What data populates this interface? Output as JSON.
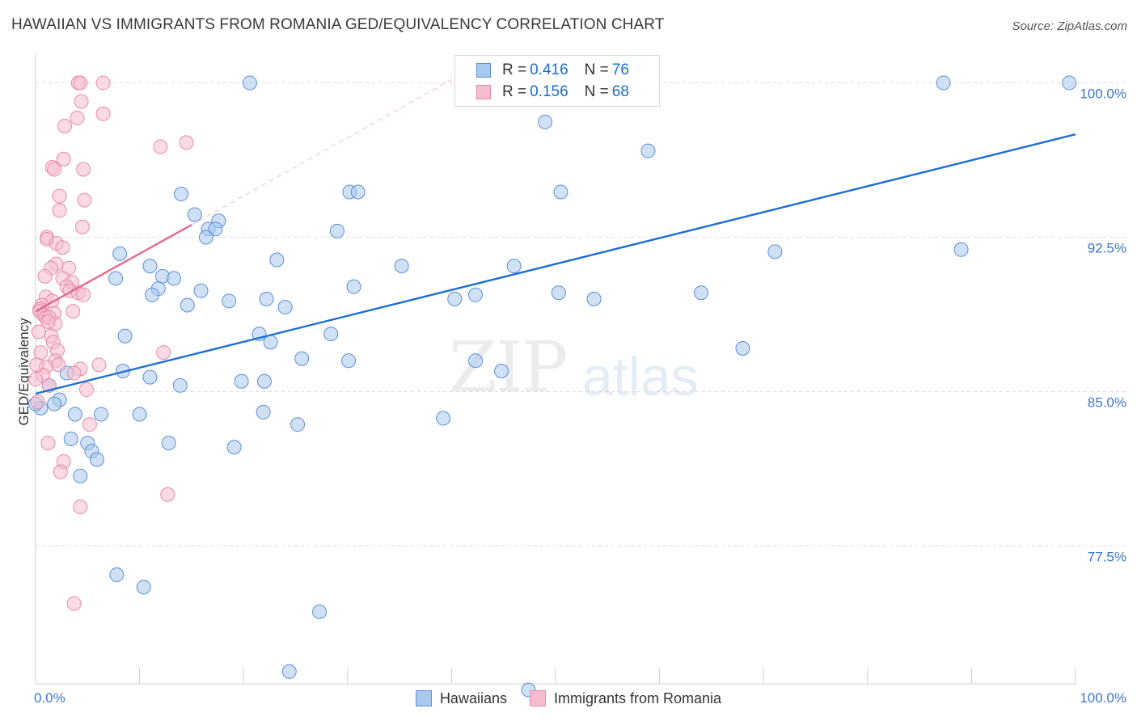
{
  "header": {
    "title": "HAWAIIAN VS IMMIGRANTS FROM ROMANIA GED/EQUIVALENCY CORRELATION CHART",
    "source": "Source: ZipAtlas.com"
  },
  "watermark": {
    "zip": "ZIP",
    "atlas": "atlas"
  },
  "legend": {
    "rows": [
      {
        "r_label": "R =",
        "r_value": "0.416",
        "n_label": "N =",
        "n_value": "76",
        "color": "#a9c8ef",
        "stroke": "#5b8fd6"
      },
      {
        "r_label": "R =",
        "r_value": "0.156",
        "n_label": "N =",
        "n_value": "68",
        "color": "#f6bdd0",
        "stroke": "#e58aa8"
      }
    ]
  },
  "bottom_legend": {
    "items": [
      {
        "label": "Hawaiians",
        "color": "#a9c8ef",
        "stroke": "#5b8fd6"
      },
      {
        "label": "Immigrants from Romania",
        "color": "#f6bdd0",
        "stroke": "#e58aa8"
      }
    ]
  },
  "chart_data": {
    "type": "scatter",
    "title": "HAWAIIAN VS IMMIGRANTS FROM ROMANIA GED/EQUIVALENCY CORRELATION CHART",
    "xlabel": "",
    "ylabel": "GED/Equivalency",
    "xlim": [
      0,
      100
    ],
    "ylim": [
      70.8,
      101.2
    ],
    "x_tick_labels": [
      {
        "value": 0,
        "label": "0.0%"
      },
      {
        "value": 100,
        "label": "100.0%"
      }
    ],
    "y_ticks": [
      {
        "value": 77.5,
        "label": "77.5%"
      },
      {
        "value": 85.0,
        "label": "85.0%"
      },
      {
        "value": 92.5,
        "label": "92.5%"
      },
      {
        "value": 100.0,
        "label": "100.0%"
      }
    ],
    "grid": true,
    "series": [
      {
        "name": "Hawaiians",
        "color": "#a9c8ef",
        "stroke": "#5b8fd6",
        "line_color": "#1f6fd1",
        "R": 0.416,
        "N": 76,
        "trend": {
          "x": [
            0,
            100
          ],
          "y": [
            84.9,
            97.5
          ],
          "dashed_extension": false
        },
        "points": [
          [
            20.6,
            100.0
          ],
          [
            87.3,
            100.0
          ],
          [
            99.4,
            100.0
          ],
          [
            49.0,
            98.1
          ],
          [
            58.9,
            96.7
          ],
          [
            14.0,
            94.6
          ],
          [
            30.2,
            94.7
          ],
          [
            31.0,
            94.7
          ],
          [
            50.5,
            94.7
          ],
          [
            15.3,
            93.6
          ],
          [
            17.6,
            93.3
          ],
          [
            16.6,
            92.9
          ],
          [
            17.3,
            92.9
          ],
          [
            16.4,
            92.5
          ],
          [
            29.0,
            92.8
          ],
          [
            71.1,
            91.8
          ],
          [
            89.0,
            91.9
          ],
          [
            8.1,
            91.7
          ],
          [
            23.2,
            91.4
          ],
          [
            11.0,
            91.1
          ],
          [
            35.2,
            91.1
          ],
          [
            46.0,
            91.1
          ],
          [
            12.2,
            90.6
          ],
          [
            13.3,
            90.5
          ],
          [
            7.7,
            90.5
          ],
          [
            11.8,
            90.0
          ],
          [
            30.6,
            90.1
          ],
          [
            11.2,
            89.7
          ],
          [
            15.9,
            89.9
          ],
          [
            18.6,
            89.4
          ],
          [
            40.3,
            89.5
          ],
          [
            42.3,
            89.7
          ],
          [
            50.3,
            89.8
          ],
          [
            53.7,
            89.5
          ],
          [
            64.0,
            89.8
          ],
          [
            14.6,
            89.2
          ],
          [
            22.2,
            89.5
          ],
          [
            24.0,
            89.1
          ],
          [
            28.4,
            87.8
          ],
          [
            8.6,
            87.7
          ],
          [
            21.5,
            87.8
          ],
          [
            22.6,
            87.4
          ],
          [
            25.6,
            86.6
          ],
          [
            30.1,
            86.5
          ],
          [
            68.0,
            87.1
          ],
          [
            42.3,
            86.5
          ],
          [
            8.4,
            86.0
          ],
          [
            3.0,
            85.9
          ],
          [
            11.0,
            85.7
          ],
          [
            19.8,
            85.5
          ],
          [
            22.0,
            85.5
          ],
          [
            44.8,
            86.0
          ],
          [
            13.9,
            85.3
          ],
          [
            1.3,
            85.3
          ],
          [
            2.3,
            84.6
          ],
          [
            1.8,
            84.4
          ],
          [
            0.5,
            84.2
          ],
          [
            0.0,
            84.4
          ],
          [
            21.9,
            84.0
          ],
          [
            3.8,
            83.9
          ],
          [
            6.3,
            83.9
          ],
          [
            10.0,
            83.9
          ],
          [
            39.2,
            83.7
          ],
          [
            25.2,
            83.4
          ],
          [
            3.4,
            82.7
          ],
          [
            5.0,
            82.5
          ],
          [
            12.8,
            82.5
          ],
          [
            19.1,
            82.3
          ],
          [
            5.4,
            82.1
          ],
          [
            5.9,
            81.7
          ],
          [
            4.3,
            80.9
          ],
          [
            7.8,
            76.1
          ],
          [
            10.4,
            75.5
          ],
          [
            27.3,
            74.3
          ],
          [
            24.4,
            71.4
          ],
          [
            47.4,
            70.5
          ]
        ]
      },
      {
        "name": "Immigrants from Romania",
        "color": "#f6bdd0",
        "stroke": "#e58aa8",
        "line_color": "#e06b93",
        "R": 0.156,
        "N": 68,
        "trend": {
          "x": [
            0,
            15.0
          ],
          "y": [
            88.9,
            93.1
          ],
          "dashed_extension": {
            "x": [
              15.0,
              40.5
            ],
            "y": [
              93.1,
              100.3
            ]
          }
        },
        "points": [
          [
            4.1,
            100.0
          ],
          [
            4.3,
            100.0
          ],
          [
            6.5,
            100.0
          ],
          [
            4.4,
            99.1
          ],
          [
            6.5,
            98.5
          ],
          [
            4.0,
            98.3
          ],
          [
            2.8,
            97.9
          ],
          [
            12.0,
            96.9
          ],
          [
            14.5,
            97.1
          ],
          [
            2.7,
            96.3
          ],
          [
            1.6,
            95.9
          ],
          [
            1.8,
            95.8
          ],
          [
            4.6,
            95.8
          ],
          [
            2.3,
            94.5
          ],
          [
            4.7,
            94.3
          ],
          [
            2.3,
            93.8
          ],
          [
            4.5,
            93.0
          ],
          [
            1.1,
            92.5
          ],
          [
            1.1,
            92.4
          ],
          [
            2.0,
            92.2
          ],
          [
            2.6,
            92.0
          ],
          [
            2.0,
            91.2
          ],
          [
            1.5,
            91.0
          ],
          [
            3.2,
            91.0
          ],
          [
            0.9,
            90.6
          ],
          [
            2.6,
            90.5
          ],
          [
            3.5,
            90.3
          ],
          [
            3.0,
            90.1
          ],
          [
            3.3,
            89.9
          ],
          [
            4.1,
            89.8
          ],
          [
            4.6,
            89.7
          ],
          [
            1.0,
            89.6
          ],
          [
            1.6,
            89.4
          ],
          [
            0.6,
            89.2
          ],
          [
            0.4,
            89.0
          ],
          [
            0.4,
            88.9
          ],
          [
            1.8,
            88.8
          ],
          [
            0.8,
            88.7
          ],
          [
            1.0,
            88.6
          ],
          [
            1.3,
            88.6
          ],
          [
            3.6,
            88.9
          ],
          [
            1.9,
            88.3
          ],
          [
            1.2,
            88.4
          ],
          [
            1.5,
            87.7
          ],
          [
            1.7,
            87.4
          ],
          [
            2.1,
            87.0
          ],
          [
            0.5,
            86.9
          ],
          [
            12.3,
            86.9
          ],
          [
            1.9,
            86.5
          ],
          [
            6.1,
            86.3
          ],
          [
            2.2,
            86.3
          ],
          [
            1.0,
            86.2
          ],
          [
            4.3,
            86.1
          ],
          [
            3.7,
            85.9
          ],
          [
            4.9,
            85.1
          ],
          [
            0.7,
            85.8
          ],
          [
            1.3,
            85.3
          ],
          [
            5.2,
            83.4
          ],
          [
            1.2,
            82.5
          ],
          [
            2.7,
            81.6
          ],
          [
            2.4,
            81.1
          ],
          [
            12.7,
            80.0
          ],
          [
            4.3,
            79.4
          ],
          [
            3.7,
            74.7
          ],
          [
            0.2,
            84.5
          ],
          [
            0.0,
            85.6
          ],
          [
            0.1,
            86.3
          ],
          [
            0.3,
            87.9
          ]
        ]
      }
    ]
  }
}
